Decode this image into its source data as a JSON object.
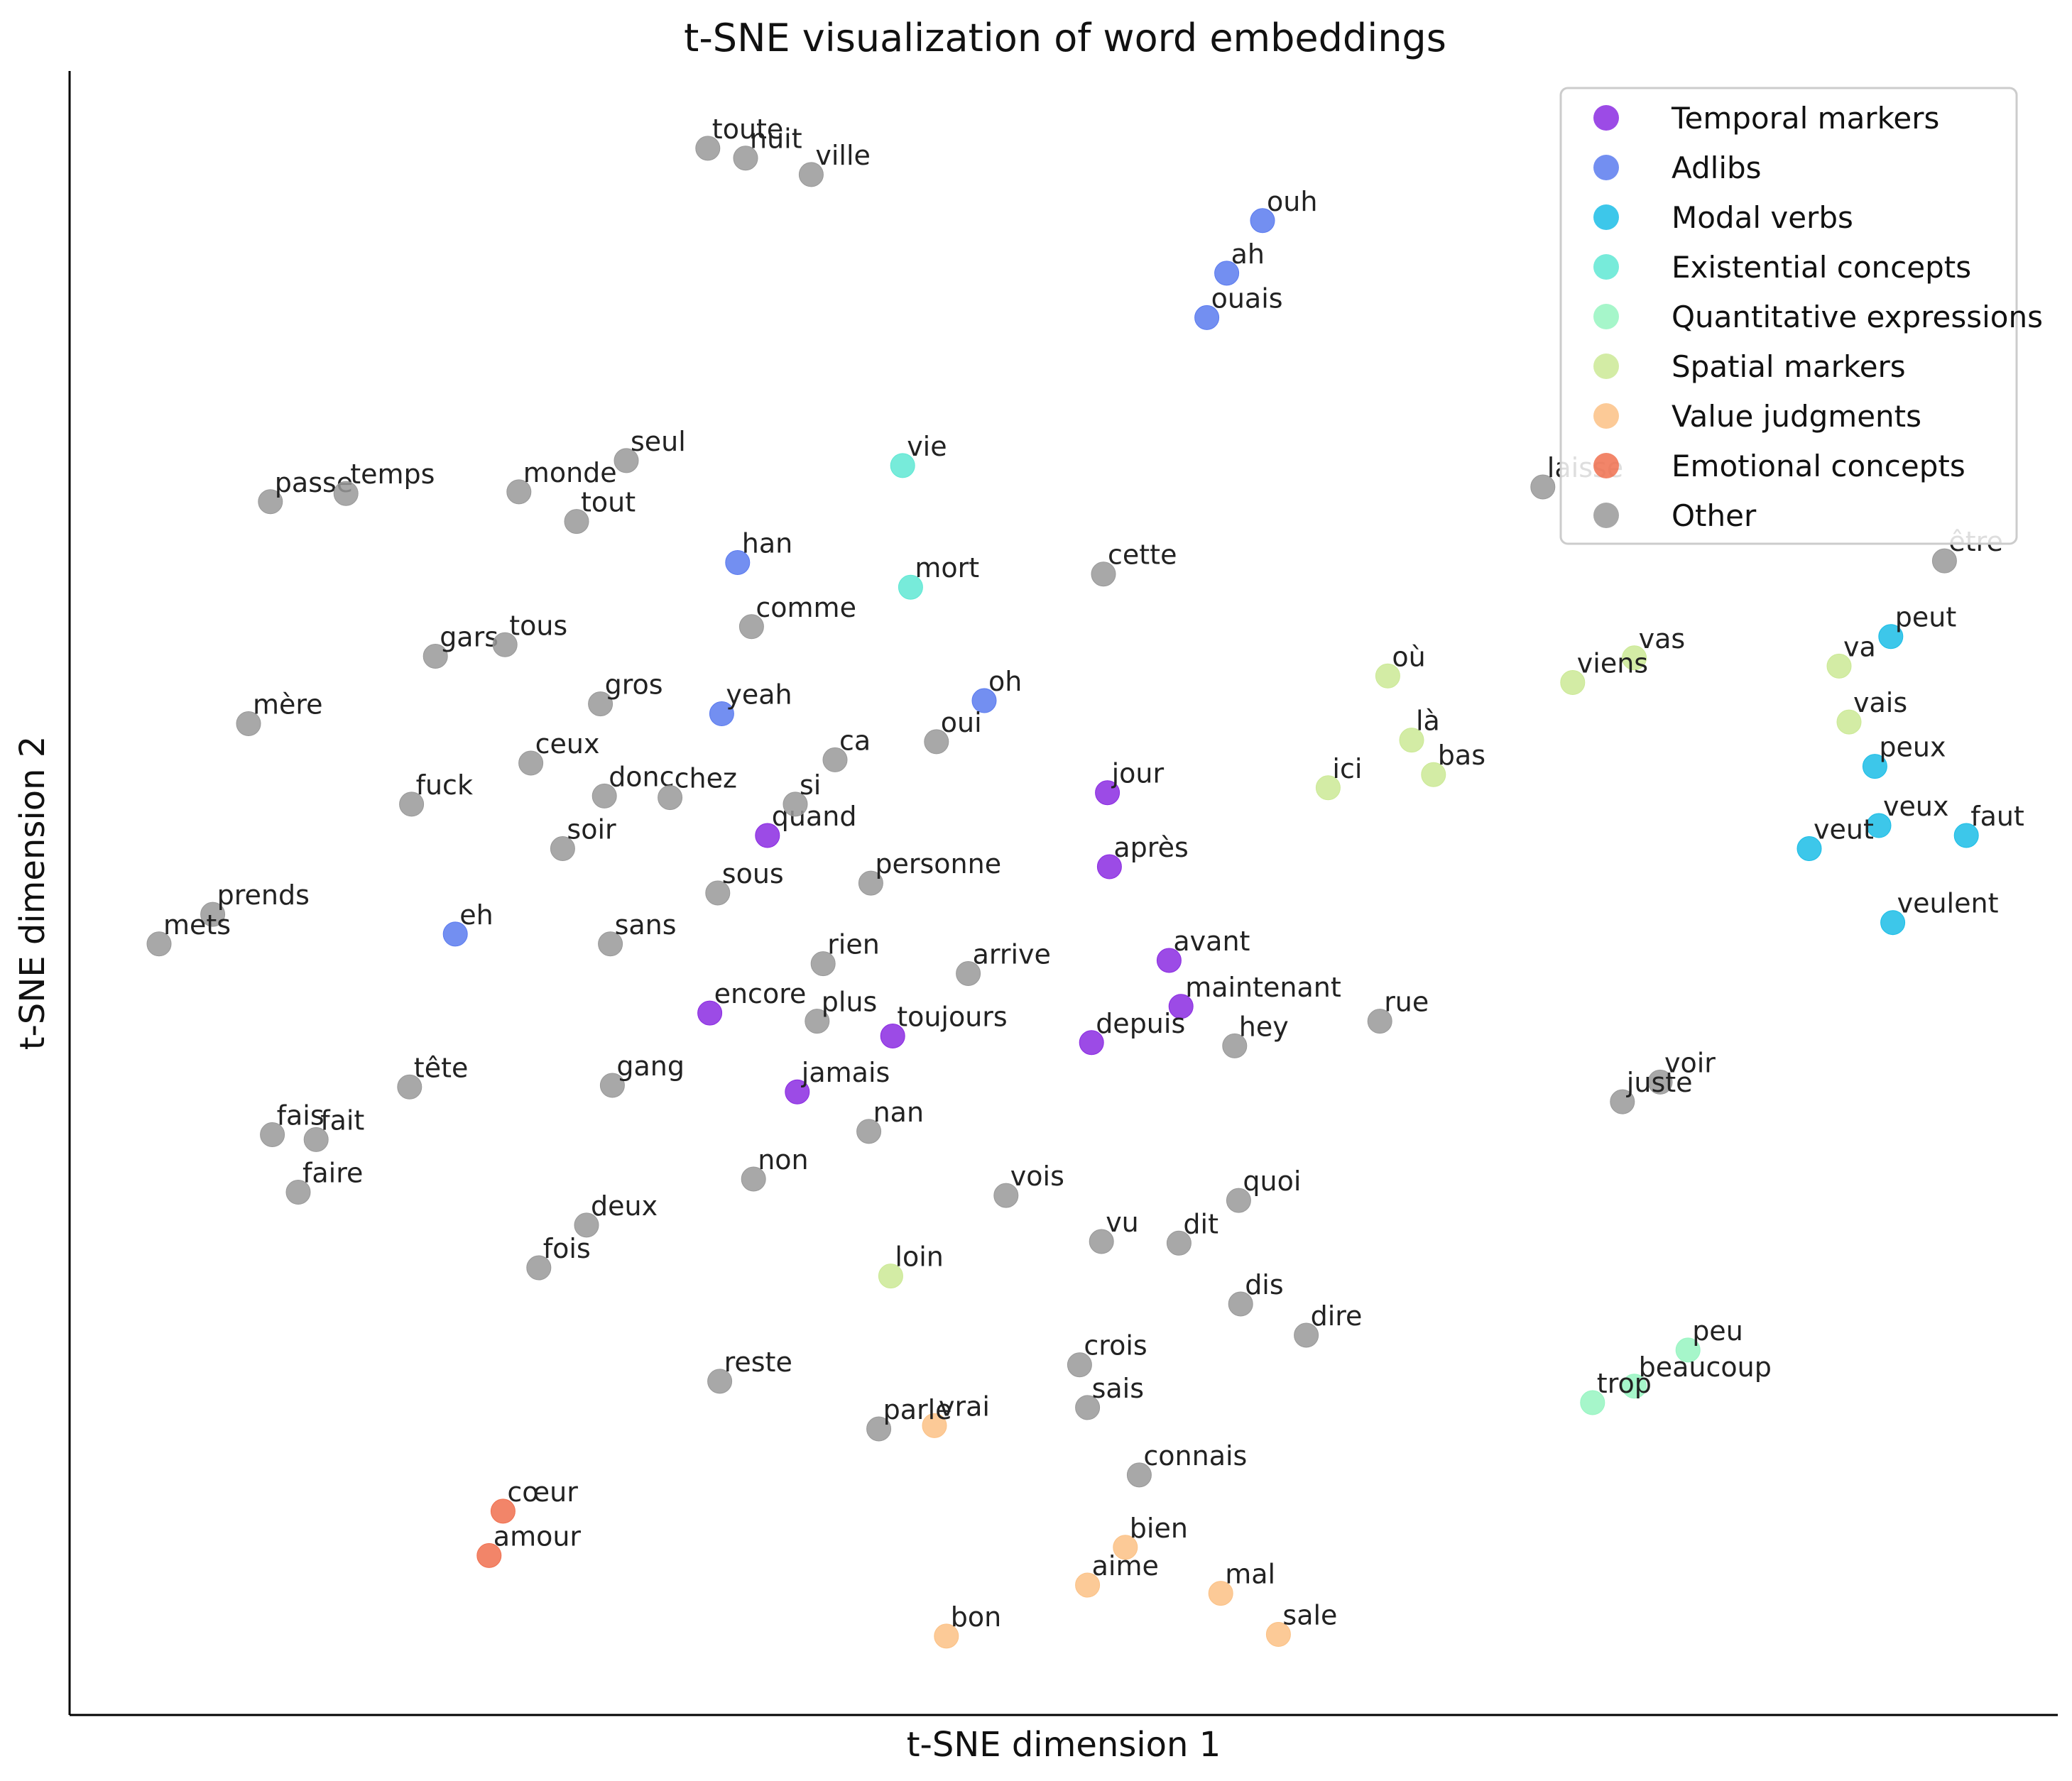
{
  "chart_data": {
    "type": "scatter",
    "title": "t-SNE visualization of word embeddings",
    "xlabel": "t-SNE dimension 1",
    "ylabel": "t-SNE dimension 2",
    "xlim": [
      0,
      100
    ],
    "ylim": [
      0,
      100
    ],
    "grid": false,
    "legend_position": "top-right",
    "series": [
      {
        "name": "Temporal markers",
        "color": "#8b2be2",
        "points": [
          {
            "word": "jour",
            "x": 52.2,
            "y": 56.1
          },
          {
            "word": "après",
            "x": 52.3,
            "y": 51.6
          },
          {
            "word": "quand",
            "x": 35.1,
            "y": 53.5
          },
          {
            "word": "avant",
            "x": 55.3,
            "y": 45.9
          },
          {
            "word": "maintenant",
            "x": 55.9,
            "y": 43.1
          },
          {
            "word": "encore",
            "x": 32.2,
            "y": 42.7
          },
          {
            "word": "toujours",
            "x": 41.4,
            "y": 41.3
          },
          {
            "word": "depuis",
            "x": 51.4,
            "y": 40.9
          },
          {
            "word": "jamais",
            "x": 36.6,
            "y": 37.9
          }
        ]
      },
      {
        "name": "Adlibs",
        "color": "#5b7bef",
        "points": [
          {
            "word": "ouh",
            "x": 60.0,
            "y": 90.9
          },
          {
            "word": "ah",
            "x": 58.2,
            "y": 87.7
          },
          {
            "word": "ouais",
            "x": 57.2,
            "y": 85.0
          },
          {
            "word": "han",
            "x": 33.6,
            "y": 70.1
          },
          {
            "word": "oh",
            "x": 46.0,
            "y": 61.7
          },
          {
            "word": "yeah",
            "x": 32.8,
            "y": 60.9
          },
          {
            "word": "eh",
            "x": 19.4,
            "y": 47.5
          }
        ]
      },
      {
        "name": "Modal verbs",
        "color": "#1bbde6",
        "points": [
          {
            "word": "peut",
            "x": 91.6,
            "y": 65.6
          },
          {
            "word": "peux",
            "x": 90.8,
            "y": 57.7
          },
          {
            "word": "veux",
            "x": 91.0,
            "y": 54.1
          },
          {
            "word": "faut",
            "x": 95.4,
            "y": 53.5
          },
          {
            "word": "veut",
            "x": 87.5,
            "y": 52.7
          },
          {
            "word": "veulent",
            "x": 91.7,
            "y": 48.2
          }
        ]
      },
      {
        "name": "Existential concepts",
        "color": "#5fe8d4",
        "points": [
          {
            "word": "vie",
            "x": 41.9,
            "y": 76.0
          },
          {
            "word": "mort",
            "x": 42.3,
            "y": 68.6
          }
        ]
      },
      {
        "name": "Quantitative expressions",
        "color": "#96f5c1",
        "points": [
          {
            "word": "peu",
            "x": 81.4,
            "y": 22.2
          },
          {
            "word": "beaucoup",
            "x": 78.7,
            "y": 20.0
          },
          {
            "word": "trop",
            "x": 76.6,
            "y": 19.0
          }
        ]
      },
      {
        "name": "Spatial markers",
        "color": "#cbe995",
        "points": [
          {
            "word": "où",
            "x": 66.3,
            "y": 63.2
          },
          {
            "word": "vas",
            "x": 78.7,
            "y": 64.3
          },
          {
            "word": "viens",
            "x": 75.6,
            "y": 62.8
          },
          {
            "word": "va",
            "x": 89.0,
            "y": 63.8
          },
          {
            "word": "vais",
            "x": 89.5,
            "y": 60.4
          },
          {
            "word": "là",
            "x": 67.5,
            "y": 59.3
          },
          {
            "word": "bas",
            "x": 68.6,
            "y": 57.2
          },
          {
            "word": "ici",
            "x": 63.3,
            "y": 56.4
          },
          {
            "word": "loin",
            "x": 41.3,
            "y": 26.7
          }
        ]
      },
      {
        "name": "Value judgments",
        "color": "#fbc185",
        "points": [
          {
            "word": "vrai",
            "x": 43.5,
            "y": 17.6
          },
          {
            "word": "bien",
            "x": 53.1,
            "y": 10.2
          },
          {
            "word": "aime",
            "x": 51.2,
            "y": 7.9
          },
          {
            "word": "mal",
            "x": 57.9,
            "y": 7.4
          },
          {
            "word": "bon",
            "x": 44.1,
            "y": 4.8
          },
          {
            "word": "sale",
            "x": 60.8,
            "y": 4.9
          }
        ]
      },
      {
        "name": "Emotional concepts",
        "color": "#f0704f",
        "points": [
          {
            "word": "cœur",
            "x": 21.8,
            "y": 12.4
          },
          {
            "word": "amour",
            "x": 21.1,
            "y": 9.7
          }
        ]
      },
      {
        "name": "Other",
        "color": "#999999",
        "points": [
          {
            "word": "toute",
            "x": 32.1,
            "y": 95.3
          },
          {
            "word": "nuit",
            "x": 34.0,
            "y": 94.7
          },
          {
            "word": "ville",
            "x": 37.3,
            "y": 93.7
          },
          {
            "word": "seul",
            "x": 28.0,
            "y": 76.3
          },
          {
            "word": "monde",
            "x": 22.6,
            "y": 74.4
          },
          {
            "word": "passe",
            "x": 10.1,
            "y": 73.8
          },
          {
            "word": "temps",
            "x": 13.9,
            "y": 74.3
          },
          {
            "word": "tout",
            "x": 25.5,
            "y": 72.6
          },
          {
            "word": "laisse",
            "x": 74.1,
            "y": 74.7
          },
          {
            "word": "être",
            "x": 94.3,
            "y": 70.2
          },
          {
            "word": "cette",
            "x": 52.0,
            "y": 69.4
          },
          {
            "word": "comme",
            "x": 34.3,
            "y": 66.2
          },
          {
            "word": "gars",
            "x": 18.4,
            "y": 64.4
          },
          {
            "word": "tous",
            "x": 21.9,
            "y": 65.1
          },
          {
            "word": "gros",
            "x": 26.7,
            "y": 61.5
          },
          {
            "word": "mère",
            "x": 9.0,
            "y": 60.3
          },
          {
            "word": "ceux",
            "x": 23.2,
            "y": 57.9
          },
          {
            "word": "ca",
            "x": 38.5,
            "y": 58.1
          },
          {
            "word": "oui",
            "x": 43.6,
            "y": 59.2
          },
          {
            "word": "donc",
            "x": 26.9,
            "y": 55.9
          },
          {
            "word": "chez",
            "x": 30.2,
            "y": 55.8
          },
          {
            "word": "fuck",
            "x": 17.2,
            "y": 55.4
          },
          {
            "word": "si",
            "x": 36.5,
            "y": 55.4
          },
          {
            "word": "soir",
            "x": 24.8,
            "y": 52.7
          },
          {
            "word": "personne",
            "x": 40.3,
            "y": 50.6
          },
          {
            "word": "sous",
            "x": 32.6,
            "y": 50.0
          },
          {
            "word": "prends",
            "x": 7.2,
            "y": 48.7
          },
          {
            "word": "mets",
            "x": 4.5,
            "y": 46.9
          },
          {
            "word": "sans",
            "x": 27.2,
            "y": 46.9
          },
          {
            "word": "rien",
            "x": 37.9,
            "y": 45.7
          },
          {
            "word": "arrive",
            "x": 45.2,
            "y": 45.1
          },
          {
            "word": "plus",
            "x": 37.6,
            "y": 42.2
          },
          {
            "word": "rue",
            "x": 65.9,
            "y": 42.2
          },
          {
            "word": "hey",
            "x": 58.6,
            "y": 40.7
          },
          {
            "word": "voir",
            "x": 80.0,
            "y": 38.5
          },
          {
            "word": "juste",
            "x": 78.1,
            "y": 37.3
          },
          {
            "word": "tête",
            "x": 17.1,
            "y": 38.2
          },
          {
            "word": "gang",
            "x": 27.3,
            "y": 38.3
          },
          {
            "word": "nan",
            "x": 40.2,
            "y": 35.5
          },
          {
            "word": "fais",
            "x": 10.2,
            "y": 35.3
          },
          {
            "word": "fait",
            "x": 12.4,
            "y": 35.0
          },
          {
            "word": "non",
            "x": 34.4,
            "y": 32.6
          },
          {
            "word": "faire",
            "x": 11.5,
            "y": 31.8
          },
          {
            "word": "vois",
            "x": 47.1,
            "y": 31.6
          },
          {
            "word": "quoi",
            "x": 58.8,
            "y": 31.3
          },
          {
            "word": "deux",
            "x": 26.0,
            "y": 29.8
          },
          {
            "word": "vu",
            "x": 51.9,
            "y": 28.8
          },
          {
            "word": "dit",
            "x": 55.8,
            "y": 28.7
          },
          {
            "word": "fois",
            "x": 23.6,
            "y": 27.2
          },
          {
            "word": "dis",
            "x": 58.9,
            "y": 25.0
          },
          {
            "word": "dire",
            "x": 62.2,
            "y": 23.1
          },
          {
            "word": "crois",
            "x": 50.8,
            "y": 21.3
          },
          {
            "word": "reste",
            "x": 32.7,
            "y": 20.3
          },
          {
            "word": "sais",
            "x": 51.2,
            "y": 18.7
          },
          {
            "word": "parle",
            "x": 40.7,
            "y": 17.4
          },
          {
            "word": "connais",
            "x": 53.8,
            "y": 14.6
          }
        ]
      }
    ]
  }
}
